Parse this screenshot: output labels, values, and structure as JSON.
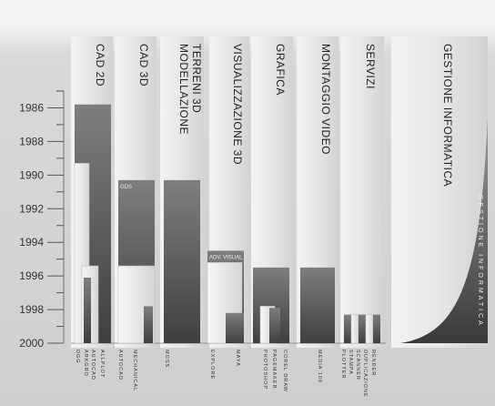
{
  "colors": {
    "bar_dark_top": "#7a7a7a",
    "bar_dark_bottom": "#4a4a4a",
    "bar_light": "#e6e6e6",
    "band_light": "#eeeeee",
    "band_mid": "#d4d4d4",
    "area_fill": "#5a5a5a",
    "text": "#222222"
  },
  "chart_data": {
    "type": "bar",
    "orientation": "vertical-timeline",
    "y_axis": {
      "direction": "time increasing downward",
      "range": [
        1985,
        2000
      ],
      "tick_labels": [
        "1986",
        "1988",
        "1990",
        "1992",
        "1994",
        "1996",
        "1998",
        "2000"
      ],
      "minor_ticks_yearly": true
    },
    "categories": [
      "CAD 2D",
      "CAD 3D",
      "MODELLAZIONE TERRENI 3D",
      "VISUALIZZAZIONE 3D",
      "GRAFICA",
      "MONTAGGIO VIDEO",
      "SERVIZI",
      "GESTIONE INFORMATICA"
    ],
    "series": [
      {
        "category": "CAD 2D",
        "tool": "DGG",
        "start": 1985.8,
        "end": 2000,
        "shade": "dark"
      },
      {
        "category": "CAD 2D",
        "tool": "ARKGRO",
        "start": 1989.3,
        "end": 2000,
        "shade": "light"
      },
      {
        "category": "CAD 2D",
        "tool": "AUTOCAD",
        "start": 1995.4,
        "end": 2000,
        "shade": "light"
      },
      {
        "category": "CAD 2D",
        "tool": "ALLPLOT",
        "start": 1996.1,
        "end": 2000,
        "shade": "dark"
      },
      {
        "category": "CAD 3D",
        "tool": "AUTOCAD",
        "start": 1990.3,
        "end": 2000,
        "shade": "dark",
        "label": "GDS"
      },
      {
        "category": "CAD 3D",
        "tool": "MECHANICAL",
        "start": 1995.4,
        "end": 2000,
        "shade": "light"
      },
      {
        "category": "CAD 3D",
        "tool": "MECHANICAL",
        "start": 1997.8,
        "end": 2000,
        "shade": "dark"
      },
      {
        "category": "MODELLAZIONE TERRENI 3D",
        "tool": "MOSS",
        "start": 1990.3,
        "end": 2000,
        "shade": "dark"
      },
      {
        "category": "VISUALIZZAZIONE 3D",
        "tool": "EXPLORE",
        "start": 1994.5,
        "end": 2000,
        "shade": "dark",
        "label": "ADV. VISUAL"
      },
      {
        "category": "VISUALIZZAZIONE 3D",
        "tool": "EXPLORE",
        "start": 1995.2,
        "end": 2000,
        "shade": "light"
      },
      {
        "category": "VISUALIZZAZIONE 3D",
        "tool": "MAYA",
        "start": 1998.2,
        "end": 2000,
        "shade": "dark"
      },
      {
        "category": "GRAFICA",
        "tool": "PHOTOSHOP",
        "start": 1995.5,
        "end": 2000,
        "shade": "dark"
      },
      {
        "category": "GRAFICA",
        "tool": "PAGEMAKER",
        "start": 1997.8,
        "end": 2000,
        "shade": "light"
      },
      {
        "category": "GRAFICA",
        "tool": "COREL DRAW",
        "start": 1997.9,
        "end": 2000,
        "shade": "dark"
      },
      {
        "category": "MONTAGGIO VIDEO",
        "tool": "MEDIA 100",
        "start": 1995.5,
        "end": 2000,
        "shade": "dark"
      },
      {
        "category": "SERVIZI",
        "tool": "PLOTTER",
        "start": 1998.3,
        "end": 2000,
        "shade": "dark"
      },
      {
        "category": "SERVIZI",
        "tool": "STAMPA",
        "start": 1998.3,
        "end": 2000,
        "shade": "light"
      },
      {
        "category": "SERVIZI",
        "tool": "SCANNER",
        "start": 1998.3,
        "end": 2000,
        "shade": "dark"
      },
      {
        "category": "SERVIZI",
        "tool": "DUPLICAZIONE",
        "start": 1998.3,
        "end": 2000,
        "shade": "light"
      },
      {
        "category": "SERVIZI",
        "tool": "RENDER",
        "start": 1998.3,
        "end": 2000,
        "shade": "dark"
      }
    ],
    "area": {
      "category": "GESTIONE INFORMATICA",
      "label": "GESTIONE INFORMATICA",
      "shape": "rising curve"
    },
    "tool_labels": [
      "DGG",
      "ARKGRO",
      "AUTOCAD",
      "ALLPLOT",
      "AUTOCAD",
      "MECHANICAL",
      "MOSS",
      "EXPLORE",
      "MAYA",
      "PHOTOSHOP",
      "PAGEMAKER",
      "COREL DRAW",
      "MEDIA 100",
      "PLOTTER",
      "STAMPA",
      "SCANNER",
      "DUPLICAZIONE",
      "RENDER"
    ],
    "legend": "none",
    "grid": false
  }
}
